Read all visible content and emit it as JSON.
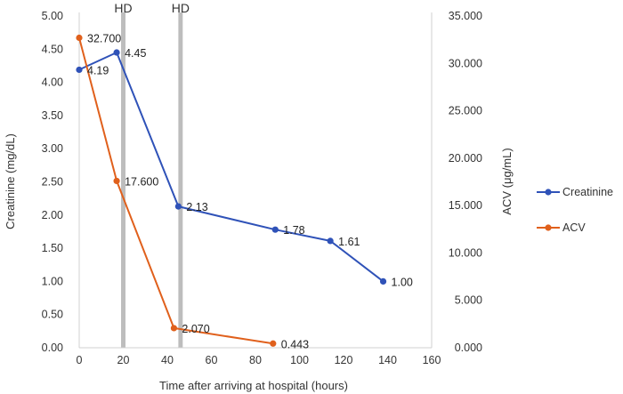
{
  "chart_data": {
    "type": "line",
    "xlabel": "Time after arriving at hospital (hours)",
    "ylabel_left": "Creatinine (mg/dL)",
    "ylabel_right": "ACV (μg/mL)",
    "xlim": [
      0,
      160
    ],
    "x_ticks": [
      "0",
      "20",
      "40",
      "60",
      "80",
      "100",
      "120",
      "140",
      "160"
    ],
    "ylim_left": [
      0,
      5
    ],
    "y_left_ticks": [
      "0.00",
      "0.50",
      "1.00",
      "1.50",
      "2.00",
      "2.50",
      "3.00",
      "3.50",
      "4.00",
      "4.50",
      "5.00"
    ],
    "ylim_right": [
      0,
      35
    ],
    "y_right_ticks": [
      "0.000",
      "5.000",
      "10.000",
      "15.000",
      "20.000",
      "25.000",
      "30.000",
      "35.000"
    ],
    "grid": false,
    "legend_position": "right",
    "annotations": [
      {
        "label": "HD",
        "x_range": [
          19,
          21
        ]
      },
      {
        "label": "HD",
        "x_range": [
          45,
          47
        ]
      }
    ],
    "series": [
      {
        "name": "Creatinine",
        "axis": "left",
        "color": "#2f52b8",
        "x": [
          0,
          17,
          45,
          89,
          114,
          138
        ],
        "y": [
          4.19,
          4.45,
          2.13,
          1.78,
          1.61,
          1.0
        ],
        "labels": [
          "4.19",
          "4.45",
          "2.13",
          "1.78",
          "1.61",
          "1.00"
        ]
      },
      {
        "name": "ACV",
        "axis": "right",
        "color": "#e0601c",
        "x": [
          0,
          17,
          43,
          88
        ],
        "y": [
          32.7,
          17.6,
          2.07,
          0.443
        ],
        "labels": [
          "32.700",
          "17.600",
          "2.070",
          "0.443"
        ]
      }
    ]
  }
}
